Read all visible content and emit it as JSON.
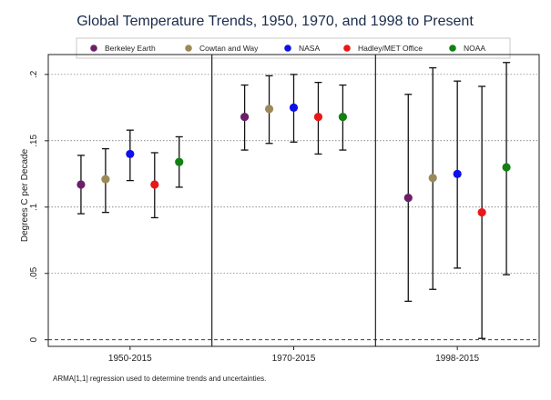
{
  "chart_data": {
    "type": "scatter",
    "title": "Global Temperature Trends, 1950, 1970, and 1998 to Present",
    "ylabel": "Degrees C per Decade",
    "note": "ARMA[1,1] regression used to determine trends and uncertainties.",
    "ylim": [
      -0.005,
      0.215
    ],
    "y_ticks": [
      0,
      0.05,
      0.1,
      0.15,
      0.2
    ],
    "y_tick_labels": [
      "0",
      ".05",
      ".1",
      ".15",
      ".2"
    ],
    "grid": "dotted horizontal",
    "legend_position": "top",
    "categories": [
      "1950-2015",
      "1970-2015",
      "1998-2015"
    ],
    "series": [
      {
        "name": "Berkeley Earth",
        "color": "#6b1f6b",
        "values": [
          0.117,
          0.168,
          0.107
        ],
        "lower": [
          0.095,
          0.143,
          0.029
        ],
        "upper": [
          0.139,
          0.192,
          0.185
        ]
      },
      {
        "name": "Cowtan and Way",
        "color": "#9b8a58",
        "values": [
          0.121,
          0.174,
          0.122
        ],
        "lower": [
          0.096,
          0.148,
          0.038
        ],
        "upper": [
          0.144,
          0.199,
          0.205
        ]
      },
      {
        "name": "NASA",
        "color": "#1010e8",
        "values": [
          0.14,
          0.175,
          0.125
        ],
        "lower": [
          0.12,
          0.149,
          0.054
        ],
        "upper": [
          0.158,
          0.2,
          0.195
        ]
      },
      {
        "name": "Hadley/MET Office",
        "color": "#e81818",
        "values": [
          0.117,
          0.168,
          0.096
        ],
        "lower": [
          0.092,
          0.14,
          0.001
        ],
        "upper": [
          0.141,
          0.194,
          0.191
        ]
      },
      {
        "name": "NOAA",
        "color": "#128012",
        "values": [
          0.134,
          0.168,
          0.13
        ],
        "lower": [
          0.115,
          0.143,
          0.049
        ],
        "upper": [
          0.153,
          0.192,
          0.209
        ]
      }
    ]
  }
}
